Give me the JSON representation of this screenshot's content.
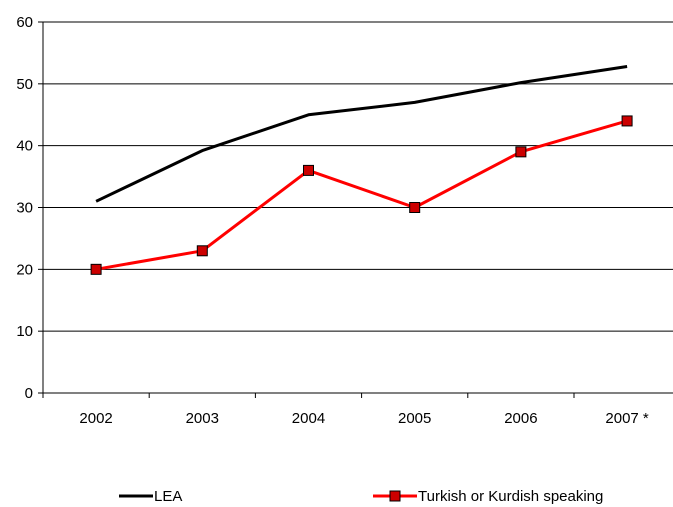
{
  "chart_data": {
    "type": "line",
    "categories": [
      "2002",
      "2003",
      "2004",
      "2005",
      "2006",
      "2007 *"
    ],
    "ylim": [
      0,
      60
    ],
    "yticks": [
      0,
      10,
      20,
      30,
      40,
      50,
      60
    ],
    "grid": true,
    "legend_position": "bottom",
    "series": [
      {
        "name": "LEA",
        "color": "#000000",
        "marker": "none",
        "values": [
          31,
          39.2,
          45,
          47,
          50.2,
          52.8
        ]
      },
      {
        "name": "Turkish or Kurdish speaking",
        "color": "#ff0000",
        "marker": "square",
        "marker_fill": "#cc0000",
        "values": [
          20,
          23,
          36,
          30,
          39,
          44
        ]
      }
    ]
  }
}
